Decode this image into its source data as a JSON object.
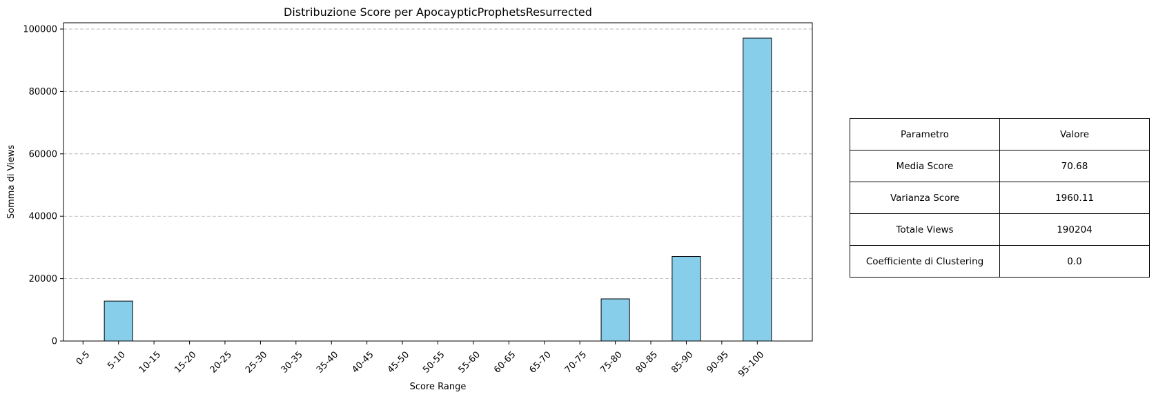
{
  "chart_data": {
    "type": "bar",
    "title": "Distribuzione Score per ApocaypticProphetsResurrected",
    "xlabel": "Score Range",
    "ylabel": "Somma di Views",
    "categories": [
      "0-5",
      "5-10",
      "10-15",
      "15-20",
      "20-25",
      "25-30",
      "30-35",
      "35-40",
      "40-45",
      "45-50",
      "50-55",
      "55-60",
      "60-65",
      "65-70",
      "70-75",
      "75-80",
      "80-85",
      "85-90",
      "90-95",
      "95-100"
    ],
    "values": [
      0,
      12800,
      0,
      0,
      0,
      0,
      0,
      0,
      0,
      0,
      0,
      0,
      0,
      0,
      0,
      13500,
      0,
      27100,
      0,
      97100
    ],
    "ylim": [
      0,
      102000
    ],
    "yticks": [
      0,
      20000,
      40000,
      60000,
      80000,
      100000
    ],
    "grid": "y-dashed",
    "bar_color": "#87ceeb",
    "edge_color": "#000000"
  },
  "table": {
    "header": {
      "param": "Parametro",
      "value": "Valore"
    },
    "rows": [
      {
        "param": "Media Score",
        "value": "70.68"
      },
      {
        "param": "Varianza Score",
        "value": "1960.11"
      },
      {
        "param": "Totale Views",
        "value": "190204"
      },
      {
        "param": "Coefficiente di Clustering",
        "value": "0.0"
      }
    ]
  }
}
